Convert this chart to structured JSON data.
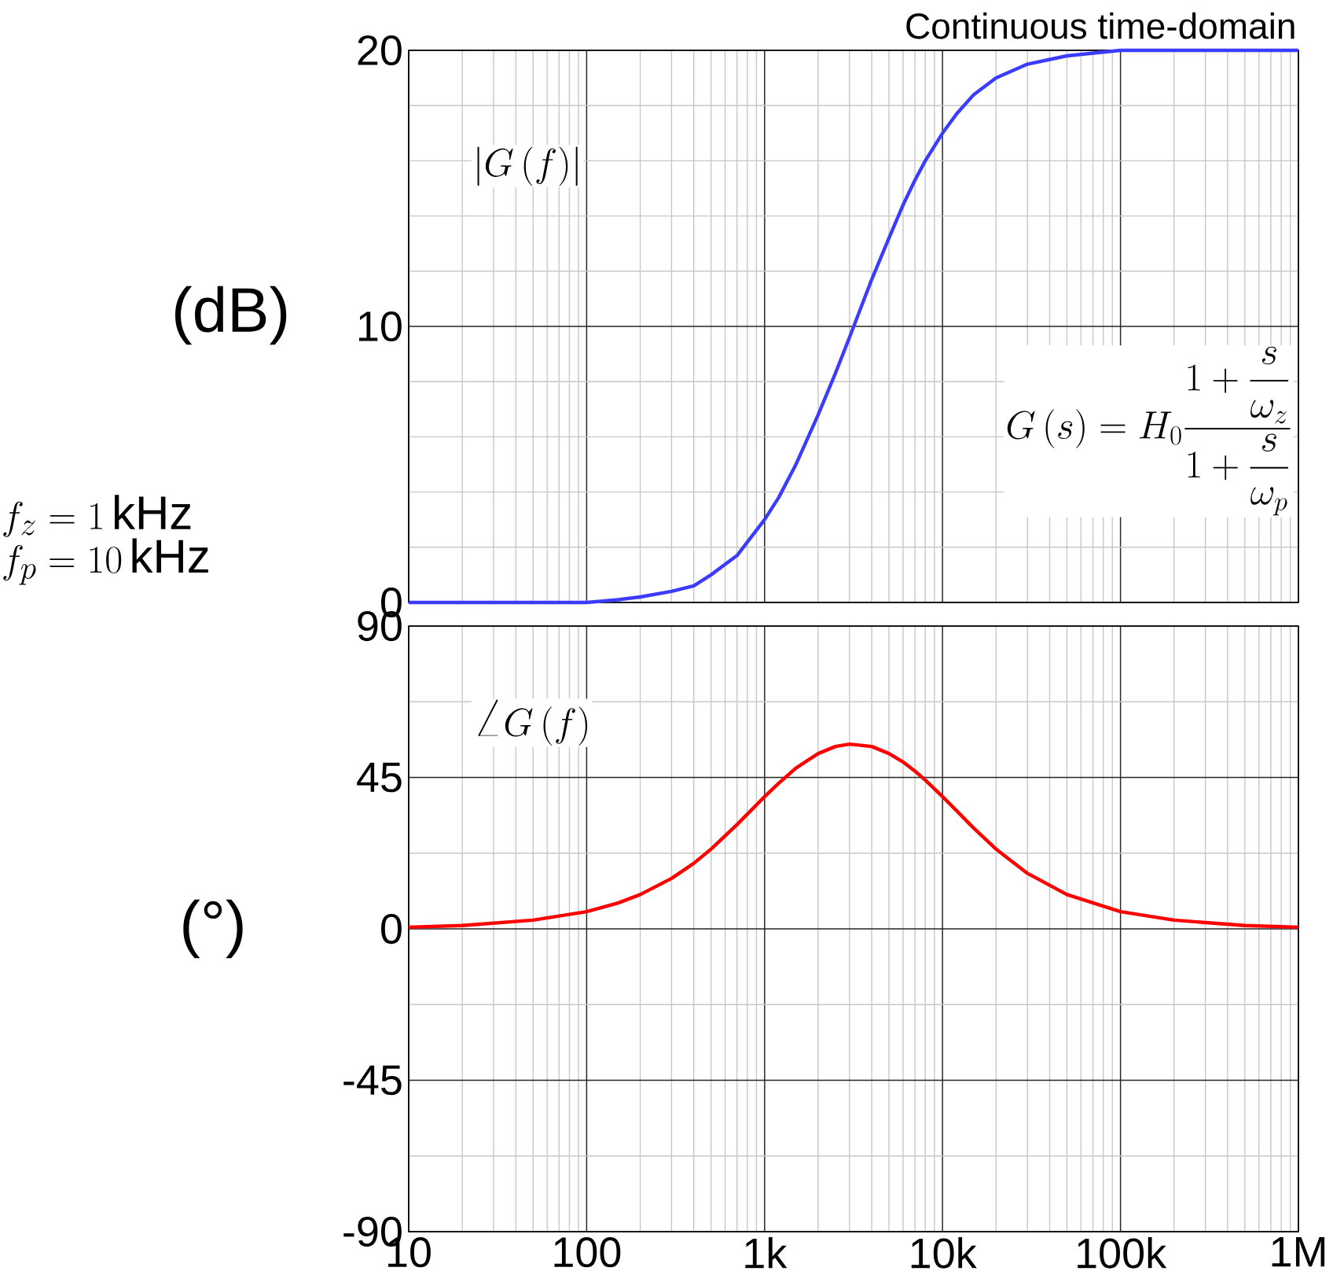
{
  "chart_data": [
    {
      "type": "line",
      "title": "Continuous time-domain",
      "ylabel": "(dB)",
      "x": [
        10,
        20,
        50,
        100,
        150,
        200,
        300,
        400,
        500,
        700,
        1000,
        1200,
        1500,
        2000,
        2500,
        3000,
        4000,
        5000,
        6000,
        7000,
        8000,
        10000,
        12000,
        15000,
        20000,
        30000,
        50000,
        100000,
        200000,
        500000,
        1000000
      ],
      "series": [
        {
          "color": "#3c3cff",
          "values": [
            0,
            0,
            0,
            0,
            0.1,
            0.2,
            0.4,
            0.6,
            1.0,
            1.7,
            3.0,
            3.8,
            5.0,
            6.8,
            8.3,
            9.6,
            11.7,
            13.2,
            14.4,
            15.3,
            16.0,
            17.0,
            17.7,
            18.4,
            19.0,
            19.5,
            19.8,
            20,
            20,
            20,
            20
          ]
        }
      ],
      "xlim": [
        10,
        1000000
      ],
      "ylim": [
        0,
        20
      ],
      "xticks": [
        10,
        100,
        1000,
        10000,
        100000,
        1000000
      ],
      "yticks": [
        0,
        10,
        20
      ],
      "log": "x",
      "grid": true,
      "tick_labels": "y",
      "annotations": [
        "\\left|G\\left(f\\right)\\right|",
        "G\\left(s\\right)=H_0\\dfrac{1+\\dfrac{s}{\\omega_z}}{1+\\dfrac{s}{\\omega_p}}",
        "f_z=1\\,\\mathrm{kHz}",
        "f_p=10\\,\\mathrm{kHz}"
      ]
    },
    {
      "type": "line",
      "ylabel": "(°)",
      "x": [
        10,
        20,
        50,
        100,
        150,
        200,
        300,
        400,
        500,
        700,
        1000,
        1200,
        1500,
        2000,
        2500,
        3000,
        4000,
        5000,
        6000,
        7000,
        8000,
        10000,
        12000,
        15000,
        20000,
        30000,
        50000,
        100000,
        200000,
        500000,
        1000000
      ],
      "series": [
        {
          "color": "#ff0000",
          "values": [
            0.5,
            1.0,
            2.6,
            5.1,
            7.7,
            10.2,
            15.0,
            19.5,
            23.7,
            31.0,
            39.3,
            43.3,
            47.8,
            52.1,
            54.2,
            54.9,
            54.2,
            52.1,
            49.6,
            46.9,
            44.2,
            39.3,
            35.1,
            29.9,
            23.7,
            16.5,
            10.2,
            5.1,
            2.6,
            1.0,
            0.5
          ]
        }
      ],
      "xlim": [
        10,
        1000000
      ],
      "ylim": [
        -90,
        90
      ],
      "xticks": [
        10,
        100,
        {
          "value": 1000,
          "label": "1k"
        },
        {
          "value": 10000,
          "label": "10k"
        },
        {
          "value": 100000,
          "label": "100k"
        },
        {
          "value": 1000000,
          "label": "1M"
        }
      ],
      "yticks": [
        -90,
        -45,
        0,
        45,
        90
      ],
      "log": "x",
      "grid": true,
      "annotations": [
        "\\angle G\\left(f\\right)"
      ]
    }
  ]
}
